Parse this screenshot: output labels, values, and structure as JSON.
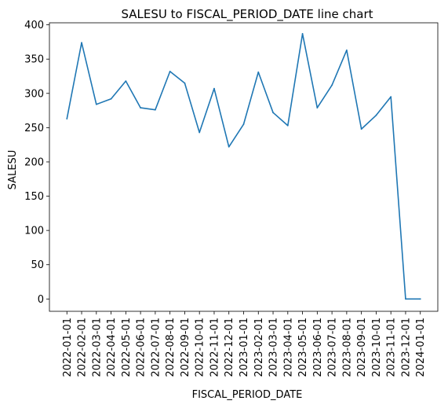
{
  "chart_data": {
    "type": "line",
    "title": "SALESU to FISCAL_PERIOD_DATE line chart",
    "xlabel": "FISCAL_PERIOD_DATE",
    "ylabel": "SALESU",
    "ylim": [
      -18,
      403
    ],
    "yticks": [
      0,
      50,
      100,
      150,
      200,
      250,
      300,
      350,
      400
    ],
    "grid": false,
    "legend": "none",
    "line_color": "#1f77b4",
    "x": [
      "2022-01-01",
      "2022-02-01",
      "2022-03-01",
      "2022-04-01",
      "2022-05-01",
      "2022-06-01",
      "2022-07-01",
      "2022-08-01",
      "2022-09-01",
      "2022-10-01",
      "2022-11-01",
      "2022-12-01",
      "2023-01-01",
      "2023-02-01",
      "2023-03-01",
      "2023-04-01",
      "2023-05-01",
      "2023-06-01",
      "2023-07-01",
      "2023-08-01",
      "2023-09-01",
      "2023-10-01",
      "2023-11-01",
      "2023-12-01",
      "2024-01-01"
    ],
    "series": [
      {
        "values": [
          263,
          374,
          284,
          292,
          318,
          279,
          276,
          332,
          315,
          243,
          307,
          222,
          255,
          331,
          272,
          253,
          387,
          279,
          312,
          363,
          248,
          268,
          295,
          0,
          0
        ]
      }
    ]
  }
}
